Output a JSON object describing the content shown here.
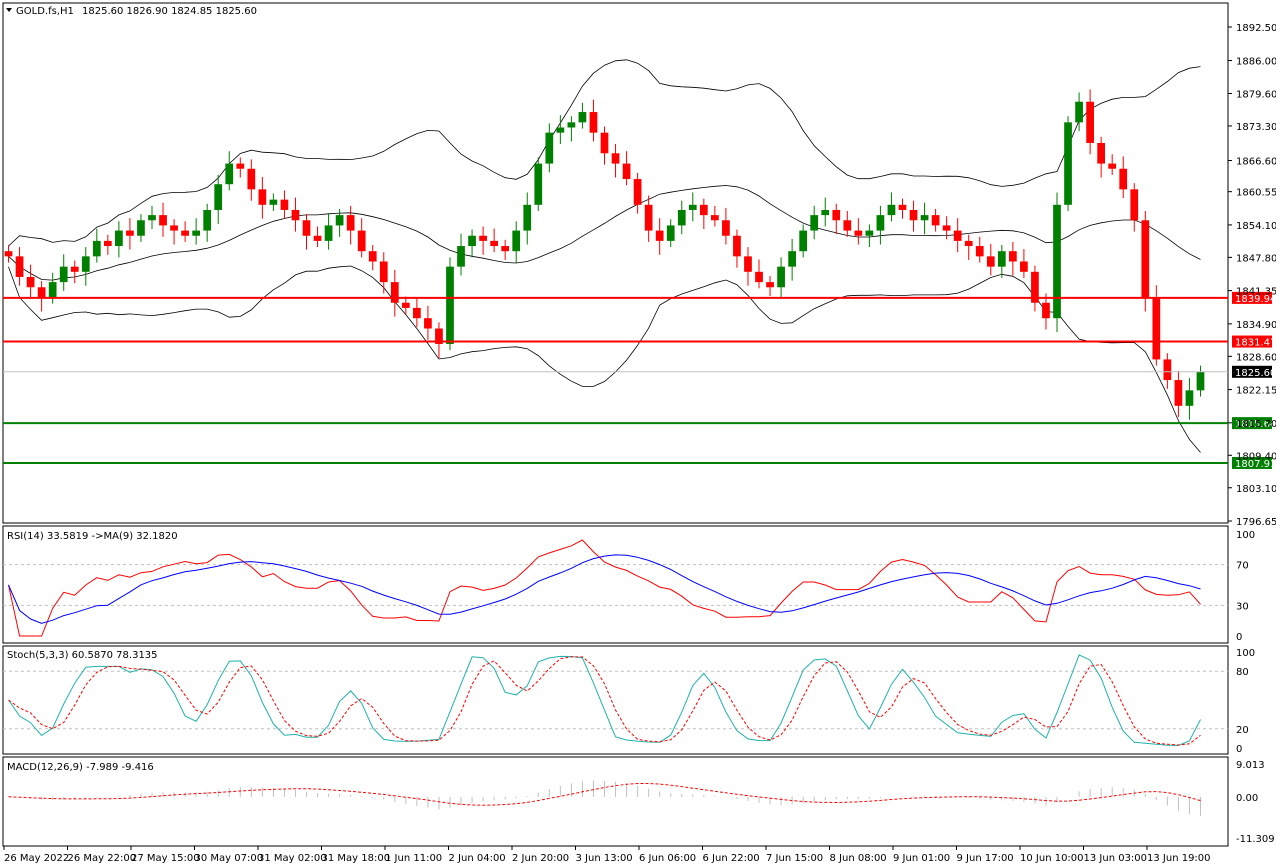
{
  "header": {
    "symbol": "GOLD.fs,H1",
    "ohlc": "1825.60 1826.90 1824.85 1825.60"
  },
  "colors": {
    "bull": "#008000",
    "bear": "#ff0000",
    "resistance": "#ff0000",
    "support": "#008000",
    "bands": "#000000",
    "rsi": "#ff0000",
    "rsi_ma": "#0000ff",
    "stoch_main": "#20b2aa",
    "stoch_signal": "#ff0000",
    "macd_hist": "#c0c0c0",
    "macd_signal": "#ff0000",
    "current_price_tag": "#000000"
  },
  "price_axis": {
    "ticks": [
      "1892.50",
      "1886.00",
      "1879.60",
      "1873.30",
      "1866.60",
      "1860.55",
      "1854.10",
      "1847.80",
      "1841.35",
      "1834.90",
      "1828.60",
      "1822.15",
      "1815.70",
      "1809.40",
      "1803.10",
      "1796.65"
    ]
  },
  "levels": {
    "resistance": [
      "1839.94",
      "1831.47"
    ],
    "support": [
      "1815.64",
      "1807.91"
    ],
    "current": "1825.60"
  },
  "indicators": {
    "rsi": {
      "label": "RSI(14) 33.5819 ->MA(9) 32.1820",
      "ticks": [
        "100",
        "70",
        "30",
        "0"
      ]
    },
    "stoch": {
      "label": "Stoch(5,3,3) 60.5870 78.3135",
      "ticks": [
        "100",
        "80",
        "20",
        "0"
      ]
    },
    "macd": {
      "label": "MACD(12,26,9) -7.989 -9.416",
      "ticks": [
        "9.013",
        "0.00",
        "-11.309"
      ]
    }
  },
  "time_axis": {
    "labels": [
      "26 May 2022",
      "26 May 22:00",
      "27 May 15:00",
      "30 May 07:00",
      "31 May 02:00",
      "31 May 18:00",
      "1 Jun 11:00",
      "2 Jun 04:00",
      "2 Jun 20:00",
      "3 Jun 13:00",
      "6 Jun 06:00",
      "6 Jun 22:00",
      "7 Jun 15:00",
      "8 Jun 08:00",
      "9 Jun 01:00",
      "9 Jun 17:00",
      "10 Jun 10:00",
      "13 Jun 03:00",
      "13 Jun 19:00"
    ]
  },
  "chart_data": {
    "type": "candlestick",
    "title": "GOLD.fs,H1",
    "ylim": [
      1796.65,
      1895.0
    ],
    "closes": [
      1848,
      1844,
      1842,
      1840,
      1843,
      1846,
      1845,
      1848,
      1851,
      1850,
      1853,
      1852,
      1855,
      1856,
      1854,
      1853,
      1852,
      1853,
      1857,
      1862,
      1866,
      1865,
      1861,
      1858,
      1859,
      1857,
      1855,
      1852,
      1851,
      1854,
      1856,
      1853,
      1849,
      1847,
      1843,
      1839,
      1838,
      1836,
      1834,
      1831,
      1846,
      1850,
      1852,
      1851,
      1850,
      1849,
      1853,
      1858,
      1866,
      1872,
      1873,
      1874,
      1876,
      1872,
      1868,
      1866,
      1863,
      1858,
      1853,
      1851,
      1854,
      1857,
      1858,
      1856,
      1855,
      1852,
      1848,
      1845,
      1843,
      1842,
      1846,
      1849,
      1853,
      1856,
      1857,
      1855,
      1853,
      1852,
      1853,
      1856,
      1858,
      1857,
      1855,
      1856,
      1854,
      1853,
      1851,
      1850,
      1848,
      1846,
      1849,
      1847,
      1845,
      1839,
      1836,
      1858,
      1874,
      1878,
      1870,
      1866,
      1865,
      1861,
      1855,
      1840,
      1828,
      1824,
      1819,
      1822,
      1825.6
    ],
    "series": [
      {
        "name": "RSI(14)",
        "last": 33.5819
      },
      {
        "name": "MA(9)",
        "last": 32.182
      },
      {
        "name": "Stoch main",
        "last": 60.587
      },
      {
        "name": "Stoch signal",
        "last": 78.3135
      },
      {
        "name": "MACD",
        "last": -7.989
      },
      {
        "name": "Signal",
        "last": -9.416
      }
    ],
    "rsi_levels": [
      70,
      30
    ],
    "stoch_levels": [
      80,
      20
    ],
    "macd_range": [
      -11.309,
      9.013
    ]
  }
}
